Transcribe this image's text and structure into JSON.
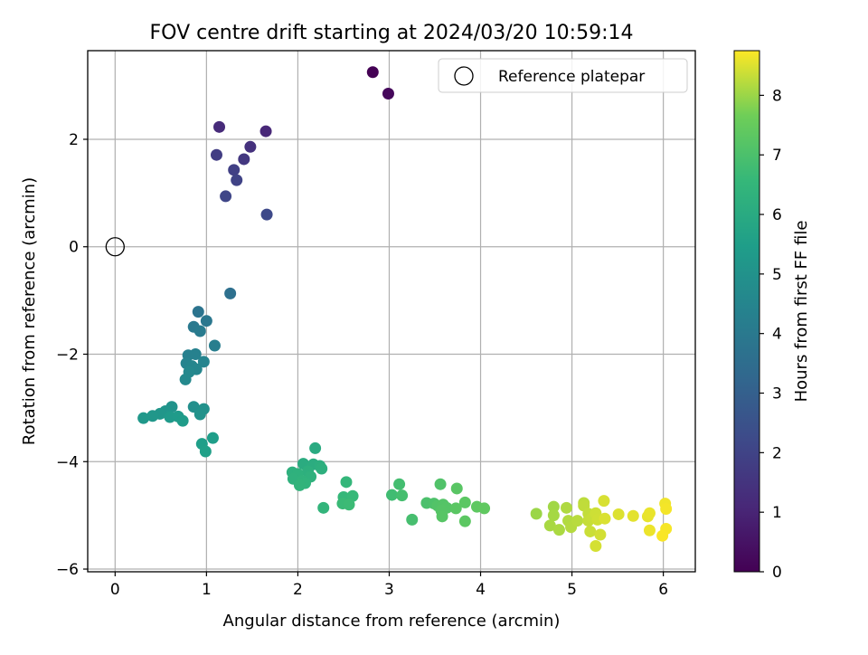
{
  "chart_data": {
    "type": "scatter",
    "title": "FOV centre drift starting at 2024/03/20 10:59:14",
    "xlabel": "Angular distance from reference (arcmin)",
    "ylabel": "Rotation from reference (arcmin)",
    "xlim": [
      -0.3,
      6.35
    ],
    "ylim": [
      -6.05,
      3.65
    ],
    "x_ticks": [
      0,
      1,
      2,
      3,
      4,
      5,
      6
    ],
    "y_ticks": [
      -6,
      -4,
      -2,
      0,
      2
    ],
    "grid": true,
    "legend": {
      "position": "top-right",
      "entries": [
        "Reference platepar"
      ]
    },
    "reference_point": {
      "label": "Reference platepar",
      "x": 0,
      "y": 0
    },
    "colorbar": {
      "label": "Hours from first FF file",
      "colormap": "viridis",
      "range": [
        0,
        8.75
      ],
      "ticks": [
        0,
        1,
        2,
        3,
        4,
        5,
        6,
        7,
        8
      ]
    },
    "series": [
      {
        "points": [
          {
            "x": 2.82,
            "y": 3.25,
            "h": 0.0
          },
          {
            "x": 2.99,
            "y": 2.85,
            "h": 0.2
          },
          {
            "x": 1.65,
            "y": 2.15,
            "h": 1.1
          },
          {
            "x": 1.14,
            "y": 2.23,
            "h": 1.2
          },
          {
            "x": 1.48,
            "y": 1.86,
            "h": 1.4
          },
          {
            "x": 1.41,
            "y": 1.63,
            "h": 1.6
          },
          {
            "x": 1.11,
            "y": 1.71,
            "h": 1.8
          },
          {
            "x": 1.3,
            "y": 1.43,
            "h": 1.9
          },
          {
            "x": 1.33,
            "y": 1.24,
            "h": 2.0
          },
          {
            "x": 1.21,
            "y": 0.94,
            "h": 2.1
          },
          {
            "x": 1.66,
            "y": 0.6,
            "h": 2.2
          },
          {
            "x": 1.26,
            "y": -0.87,
            "h": 3.6
          },
          {
            "x": 0.91,
            "y": -1.21,
            "h": 3.8
          },
          {
            "x": 1.0,
            "y": -1.38,
            "h": 3.9
          },
          {
            "x": 0.86,
            "y": -1.49,
            "h": 4.0
          },
          {
            "x": 0.93,
            "y": -1.57,
            "h": 4.1
          },
          {
            "x": 1.09,
            "y": -1.84,
            "h": 4.2
          },
          {
            "x": 0.8,
            "y": -2.02,
            "h": 4.3
          },
          {
            "x": 0.88,
            "y": -2.0,
            "h": 4.35
          },
          {
            "x": 0.78,
            "y": -2.17,
            "h": 4.4
          },
          {
            "x": 0.97,
            "y": -2.14,
            "h": 4.45
          },
          {
            "x": 0.84,
            "y": -2.22,
            "h": 4.5
          },
          {
            "x": 0.89,
            "y": -2.28,
            "h": 4.55
          },
          {
            "x": 0.81,
            "y": -2.33,
            "h": 4.6
          },
          {
            "x": 0.77,
            "y": -2.47,
            "h": 4.65
          },
          {
            "x": 0.86,
            "y": -2.98,
            "h": 4.9
          },
          {
            "x": 0.97,
            "y": -3.02,
            "h": 4.95
          },
          {
            "x": 0.93,
            "y": -3.12,
            "h": 5.0
          },
          {
            "x": 0.62,
            "y": -2.98,
            "h": 5.05
          },
          {
            "x": 0.55,
            "y": -3.06,
            "h": 5.1
          },
          {
            "x": 0.49,
            "y": -3.11,
            "h": 5.15
          },
          {
            "x": 0.41,
            "y": -3.15,
            "h": 5.2
          },
          {
            "x": 0.31,
            "y": -3.19,
            "h": 5.25
          },
          {
            "x": 0.6,
            "y": -3.17,
            "h": 5.3
          },
          {
            "x": 0.69,
            "y": -3.16,
            "h": 5.35
          },
          {
            "x": 0.74,
            "y": -3.24,
            "h": 5.4
          },
          {
            "x": 1.07,
            "y": -3.56,
            "h": 5.45
          },
          {
            "x": 0.95,
            "y": -3.67,
            "h": 5.5
          },
          {
            "x": 0.99,
            "y": -3.81,
            "h": 5.55
          },
          {
            "x": 2.19,
            "y": -3.75,
            "h": 6.0
          },
          {
            "x": 2.06,
            "y": -4.04,
            "h": 6.05
          },
          {
            "x": 2.17,
            "y": -4.05,
            "h": 6.1
          },
          {
            "x": 2.24,
            "y": -4.08,
            "h": 6.15
          },
          {
            "x": 2.26,
            "y": -4.13,
            "h": 6.2
          },
          {
            "x": 2.11,
            "y": -4.18,
            "h": 6.22
          },
          {
            "x": 1.94,
            "y": -4.2,
            "h": 6.25
          },
          {
            "x": 2.0,
            "y": -4.23,
            "h": 6.28
          },
          {
            "x": 2.14,
            "y": -4.28,
            "h": 6.3
          },
          {
            "x": 1.95,
            "y": -4.32,
            "h": 6.32
          },
          {
            "x": 2.05,
            "y": -4.36,
            "h": 6.35
          },
          {
            "x": 2.08,
            "y": -4.4,
            "h": 6.38
          },
          {
            "x": 2.02,
            "y": -4.44,
            "h": 6.4
          },
          {
            "x": 2.28,
            "y": -4.86,
            "h": 6.45
          },
          {
            "x": 2.53,
            "y": -4.38,
            "h": 6.5
          },
          {
            "x": 2.5,
            "y": -4.66,
            "h": 6.55
          },
          {
            "x": 2.6,
            "y": -4.64,
            "h": 6.6
          },
          {
            "x": 2.49,
            "y": -4.78,
            "h": 6.65
          },
          {
            "x": 2.56,
            "y": -4.8,
            "h": 6.7
          },
          {
            "x": 3.03,
            "y": -4.62,
            "h": 6.8
          },
          {
            "x": 3.11,
            "y": -4.42,
            "h": 6.85
          },
          {
            "x": 3.14,
            "y": -4.63,
            "h": 6.88
          },
          {
            "x": 3.25,
            "y": -5.08,
            "h": 6.9
          },
          {
            "x": 3.41,
            "y": -4.77,
            "h": 7.0
          },
          {
            "x": 3.49,
            "y": -4.78,
            "h": 7.05
          },
          {
            "x": 3.56,
            "y": -4.42,
            "h": 7.1
          },
          {
            "x": 3.53,
            "y": -4.82,
            "h": 7.12
          },
          {
            "x": 3.59,
            "y": -4.8,
            "h": 7.15
          },
          {
            "x": 3.63,
            "y": -4.86,
            "h": 7.18
          },
          {
            "x": 3.57,
            "y": -4.91,
            "h": 7.2
          },
          {
            "x": 3.58,
            "y": -5.02,
            "h": 7.22
          },
          {
            "x": 3.74,
            "y": -4.5,
            "h": 7.25
          },
          {
            "x": 3.73,
            "y": -4.87,
            "h": 7.28
          },
          {
            "x": 3.83,
            "y": -4.76,
            "h": 7.3
          },
          {
            "x": 3.83,
            "y": -5.11,
            "h": 7.32
          },
          {
            "x": 3.96,
            "y": -4.84,
            "h": 7.35
          },
          {
            "x": 4.04,
            "y": -4.87,
            "h": 7.38
          },
          {
            "x": 4.61,
            "y": -4.97,
            "h": 8.0
          },
          {
            "x": 4.8,
            "y": -4.84,
            "h": 8.05
          },
          {
            "x": 4.8,
            "y": -5.0,
            "h": 8.08
          },
          {
            "x": 4.76,
            "y": -5.19,
            "h": 8.1
          },
          {
            "x": 4.86,
            "y": -5.27,
            "h": 8.12
          },
          {
            "x": 4.94,
            "y": -4.86,
            "h": 8.15
          },
          {
            "x": 4.96,
            "y": -5.1,
            "h": 8.18
          },
          {
            "x": 4.99,
            "y": -5.22,
            "h": 8.2
          },
          {
            "x": 5.06,
            "y": -5.1,
            "h": 8.22
          },
          {
            "x": 5.13,
            "y": -4.77,
            "h": 8.25
          },
          {
            "x": 5.13,
            "y": -4.82,
            "h": 8.28
          },
          {
            "x": 5.18,
            "y": -4.97,
            "h": 8.3
          },
          {
            "x": 5.18,
            "y": -5.1,
            "h": 8.32
          },
          {
            "x": 5.22,
            "y": -5.05,
            "h": 8.34
          },
          {
            "x": 5.2,
            "y": -5.3,
            "h": 8.36
          },
          {
            "x": 5.26,
            "y": -4.96,
            "h": 8.38
          },
          {
            "x": 5.28,
            "y": -5.08,
            "h": 8.4
          },
          {
            "x": 5.31,
            "y": -5.36,
            "h": 8.42
          },
          {
            "x": 5.26,
            "y": -5.57,
            "h": 8.44
          },
          {
            "x": 5.35,
            "y": -4.73,
            "h": 8.46
          },
          {
            "x": 5.36,
            "y": -5.06,
            "h": 8.48
          },
          {
            "x": 5.51,
            "y": -4.98,
            "h": 8.5
          },
          {
            "x": 5.67,
            "y": -5.01,
            "h": 8.55
          },
          {
            "x": 5.83,
            "y": -5.02,
            "h": 8.58
          },
          {
            "x": 5.85,
            "y": -4.96,
            "h": 8.6
          },
          {
            "x": 5.85,
            "y": -5.28,
            "h": 8.62
          },
          {
            "x": 6.02,
            "y": -4.78,
            "h": 8.65
          },
          {
            "x": 6.03,
            "y": -4.88,
            "h": 8.68
          },
          {
            "x": 6.03,
            "y": -5.25,
            "h": 8.7
          },
          {
            "x": 5.99,
            "y": -5.38,
            "h": 8.72
          }
        ]
      }
    ]
  }
}
